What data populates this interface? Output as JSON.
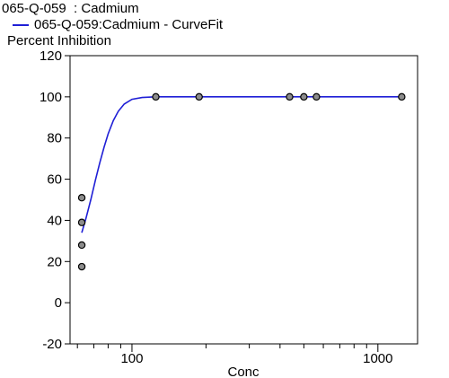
{
  "chart_data": {
    "type": "scatter",
    "title": "065-Q-059  : Cadmium",
    "legend_label": "065-Q-059:Cadmium - CurveFit",
    "ylabel": "Percent Inhibition",
    "xlabel": "Conc",
    "x_scale": "log",
    "xlim": [
      56,
      1450
    ],
    "ylim": [
      -20,
      120
    ],
    "y_ticks": [
      -20,
      0,
      20,
      40,
      60,
      80,
      100,
      120
    ],
    "x_major_ticks": [
      100,
      1000
    ],
    "x_minor_ticks": [
      60,
      70,
      80,
      90,
      200,
      300,
      400,
      500,
      600,
      700,
      800,
      900
    ],
    "legend_position": "top-left",
    "colors": {
      "curve": "#1f1fd6",
      "points": "#8c8c8c"
    },
    "series": [
      {
        "type": "scatter",
        "x": [
          62.5,
          62.5,
          62.5,
          62.5,
          125,
          187.5,
          437.5,
          500,
          562.5,
          1250
        ],
        "y": [
          51,
          39,
          28,
          17.5,
          100,
          100,
          100,
          100,
          100,
          100
        ]
      },
      {
        "name": "065-Q-059:Cadmium - CurveFit",
        "type": "line",
        "x": [
          62.5,
          65,
          68,
          71,
          74,
          77,
          80,
          84,
          88,
          93,
          100,
          110,
          125,
          150,
          200,
          300,
          500,
          800,
          1250
        ],
        "y": [
          34,
          41,
          50,
          59.5,
          68,
          75.5,
          82,
          88.5,
          93,
          96.5,
          98.8,
          99.7,
          100,
          100,
          100,
          100,
          100,
          100,
          100
        ]
      }
    ]
  }
}
